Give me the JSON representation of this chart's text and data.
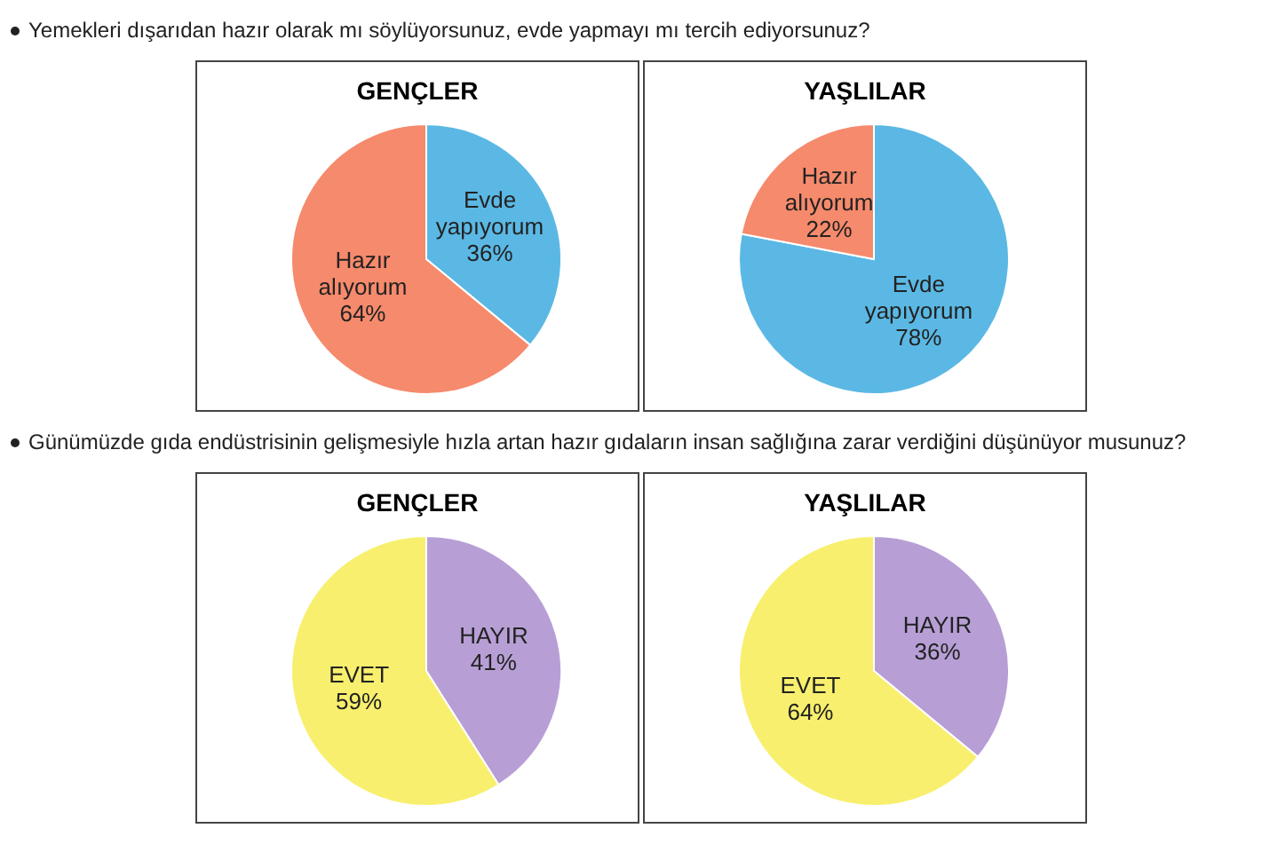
{
  "chart_data": [
    {
      "type": "pie",
      "title": "GENÇLER",
      "annotations": [
        "Yemekleri dışarıdan hazır olarak mı söylüyorsunuz, evde yapmayı mı tercih ediyorsunuz?"
      ],
      "categories": [
        "Evde yapıyorum",
        "Hazır alıyorum"
      ],
      "values": [
        36,
        64
      ],
      "colors": [
        "#5bb8e4",
        "#f68a6c"
      ],
      "value_labels": [
        "36%",
        "64%"
      ]
    },
    {
      "type": "pie",
      "title": "YAŞLILAR",
      "categories": [
        "Evde yapıyorum",
        "Hazır alıyorum"
      ],
      "values": [
        78,
        22
      ],
      "colors": [
        "#5bb8e4",
        "#f68a6c"
      ],
      "value_labels": [
        "78%",
        "22%"
      ]
    },
    {
      "type": "pie",
      "title": "GENÇLER",
      "annotations": [
        "Günümüzde gıda endüstrisinin gelişmesiyle hızla artan hazır gıdaların insan sağlığına zarar verdiğini düşünüyor musunuz?"
      ],
      "categories": [
        "HAYIR",
        "EVET"
      ],
      "values": [
        41,
        59
      ],
      "colors": [
        "#b79fd6",
        "#f8ef6e"
      ],
      "value_labels": [
        "41%",
        "59%"
      ]
    },
    {
      "type": "pie",
      "title": "YAŞLILAR",
      "categories": [
        "HAYIR",
        "EVET"
      ],
      "values": [
        36,
        64
      ],
      "colors": [
        "#b79fd6",
        "#f8ef6e"
      ],
      "value_labels": [
        "36%",
        "64%"
      ]
    }
  ]
}
